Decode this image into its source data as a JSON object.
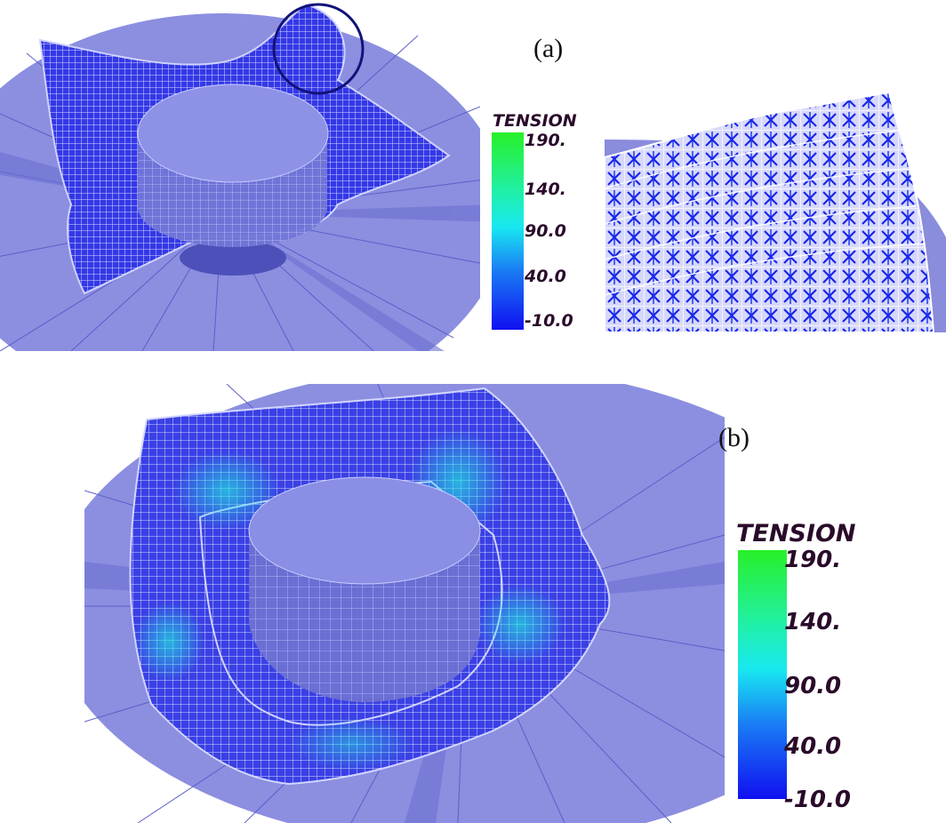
{
  "labels": {
    "a": "(a)",
    "b": "(b)"
  },
  "legend_a": {
    "title": "TENSION",
    "ticks": [
      "190.",
      "140.",
      "90.0",
      "40.0",
      "-10.0"
    ]
  },
  "legend_b": {
    "title": "TENSION",
    "ticks": [
      "190.",
      "140.",
      "90.0",
      "40.0",
      "-10.0"
    ]
  },
  "colors": {
    "disk": "#8c8ee0",
    "mesh": "#2030e8",
    "wire": "#d8dcff",
    "cylinder": "#6a70d0",
    "high_tension": "#20e8e0"
  }
}
